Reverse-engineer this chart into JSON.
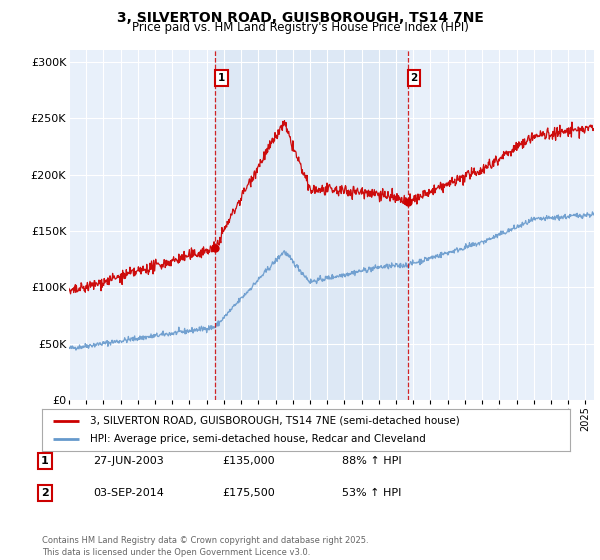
{
  "title": "3, SILVERTON ROAD, GUISBOROUGH, TS14 7NE",
  "subtitle": "Price paid vs. HM Land Registry's House Price Index (HPI)",
  "ylim": [
    0,
    310000
  ],
  "yticks": [
    0,
    50000,
    100000,
    150000,
    200000,
    250000,
    300000
  ],
  "ytick_labels": [
    "£0",
    "£50K",
    "£100K",
    "£150K",
    "£200K",
    "£250K",
    "£300K"
  ],
  "sale1_date_num": 2003.49,
  "sale1_price": 135000,
  "sale2_date_num": 2014.67,
  "sale2_price": 175500,
  "red_line_color": "#cc0000",
  "blue_line_color": "#6699cc",
  "shade_color": "#dde8f5",
  "dashed_line_color": "#cc0000",
  "legend_label_red": "3, SILVERTON ROAD, GUISBOROUGH, TS14 7NE (semi-detached house)",
  "legend_label_blue": "HPI: Average price, semi-detached house, Redcar and Cleveland",
  "annotation1_date": "27-JUN-2003",
  "annotation1_price": "£135,000",
  "annotation1_hpi": "88% ↑ HPI",
  "annotation2_date": "03-SEP-2014",
  "annotation2_price": "£175,500",
  "annotation2_hpi": "53% ↑ HPI",
  "footer": "Contains HM Land Registry data © Crown copyright and database right 2025.\nThis data is licensed under the Open Government Licence v3.0.",
  "xmin": 1995.0,
  "xmax": 2025.5
}
